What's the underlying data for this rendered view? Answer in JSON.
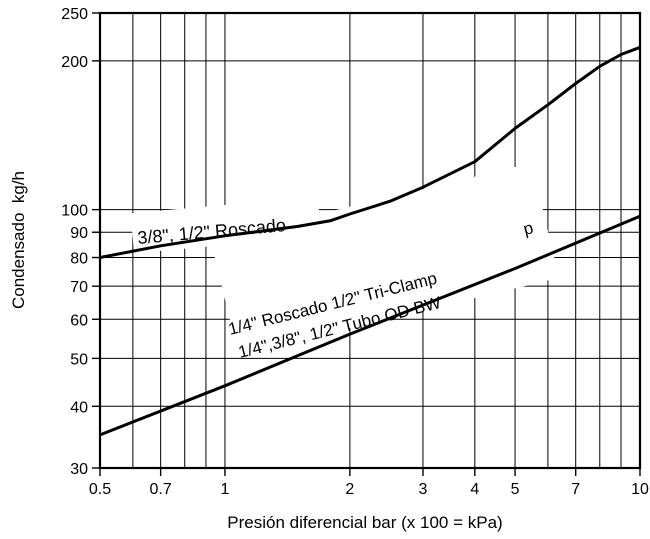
{
  "chart_data": {
    "type": "line",
    "xlabel": "Presión diferencial bar (x 100 = kPa)",
    "ylabel": "Condensado  kg/h",
    "xscale": "log",
    "yscale": "log",
    "xlim": [
      0.5,
      10
    ],
    "ylim": [
      30,
      250
    ],
    "grid": true,
    "x_ticks": [
      0.5,
      0.7,
      1,
      2,
      3,
      4,
      5,
      7,
      10
    ],
    "x_tick_labels": [
      "0.5",
      "0.7",
      "1",
      "2",
      "3",
      "4",
      "5",
      "7",
      "10"
    ],
    "x_grid": [
      0.5,
      0.6,
      0.7,
      0.8,
      0.9,
      1,
      2,
      3,
      4,
      5,
      6,
      7,
      8,
      9,
      10
    ],
    "y_ticks": [
      30,
      40,
      50,
      60,
      70,
      80,
      90,
      100,
      200,
      250
    ],
    "y_tick_labels": [
      "30",
      "40",
      "50",
      "60",
      "70",
      "80",
      "90",
      "100",
      "200",
      "250"
    ],
    "y_grid": [
      30,
      40,
      50,
      60,
      70,
      80,
      90,
      100,
      200,
      250
    ],
    "series": [
      {
        "x": [
          0.5,
          0.7,
          1,
          1.5,
          1.8,
          2,
          2.5,
          3,
          4,
          5,
          6,
          7,
          8,
          9,
          10
        ],
        "y": [
          80,
          84.5,
          88.5,
          92.5,
          95,
          98,
          104,
          111,
          125,
          146,
          163,
          180,
          195,
          206,
          213
        ]
      },
      {
        "x": [
          0.5,
          1,
          2,
          5,
          10
        ],
        "y": [
          35,
          44,
          56,
          76,
          97
        ]
      }
    ],
    "annotations": {
      "upper": "3/8\", 1/2\"  Roscado",
      "lower_1": "1/4\" Roscado 1/2\" Tri-Clamp",
      "lower_2": "1/4\",3/8\", 1/2\" Tubo OD BW",
      "fragment": "p"
    }
  }
}
